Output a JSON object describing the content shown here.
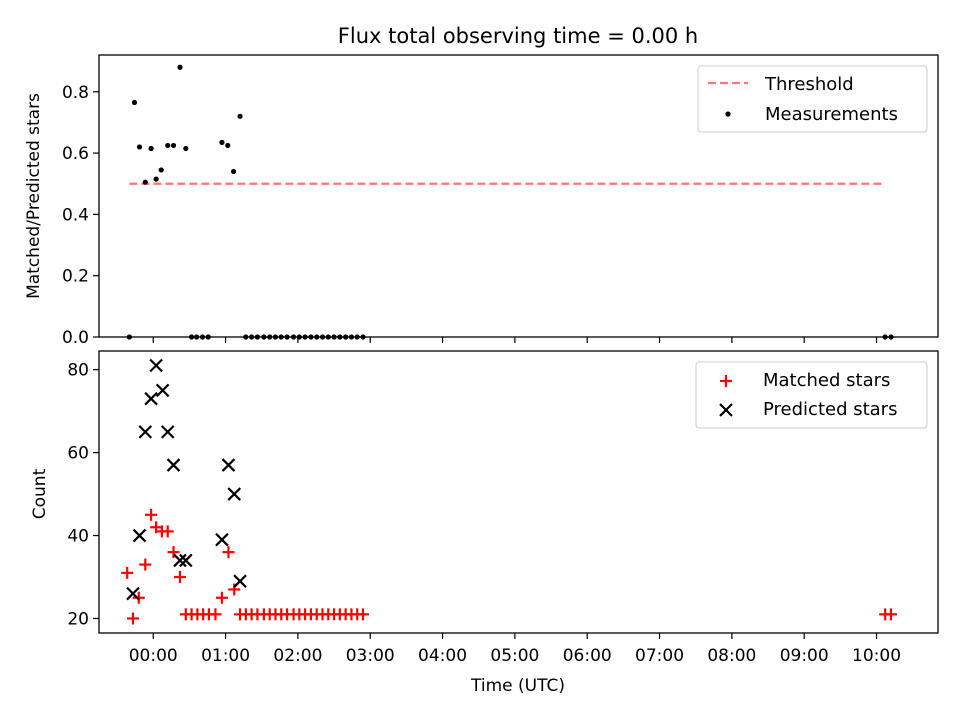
{
  "chart_data": [
    {
      "type": "scatter",
      "title": "Flux total observing time = 0.00 h",
      "ylabel": "Matched/Predicted stars",
      "xlabel": "",
      "xlim": [
        -0.75,
        10.85
      ],
      "ylim": [
        0,
        0.92
      ],
      "yticks": [
        0.0,
        0.2,
        0.4,
        0.6,
        0.8
      ],
      "ytick_labels": [
        "0.0",
        "0.2",
        "0.4",
        "0.6",
        "0.8"
      ],
      "legend_position": "top-right",
      "threshold": {
        "name": "Threshold",
        "color": "#ff7777",
        "style": "dashed",
        "x": [
          -0.33,
          10.12
        ],
        "y": 0.5
      },
      "series": [
        {
          "name": "Measurements",
          "color": "#000000",
          "marker": "dot",
          "x": [
            -0.33,
            -0.26,
            -0.19,
            -0.11,
            -0.03,
            0.04,
            0.11,
            0.2,
            0.28,
            0.37,
            0.45,
            0.53,
            0.6,
            0.68,
            0.76,
            0.95,
            1.03,
            1.11,
            1.2,
            1.28,
            1.36,
            1.44,
            1.53,
            1.61,
            1.69,
            1.77,
            1.85,
            1.94,
            2.02,
            2.1,
            2.18,
            2.26,
            2.34,
            2.42,
            2.5,
            2.58,
            2.66,
            2.74,
            2.82,
            2.9,
            10.12,
            10.2
          ],
          "y": [
            0.0,
            0.765,
            0.62,
            0.505,
            0.615,
            0.515,
            0.545,
            0.625,
            0.625,
            0.88,
            0.615,
            0.0,
            0.0,
            0.0,
            0.0,
            0.635,
            0.625,
            0.54,
            0.72,
            0.0,
            0.0,
            0.0,
            0.0,
            0.0,
            0.0,
            0.0,
            0.0,
            0.0,
            0.0,
            0.0,
            0.0,
            0.0,
            0.0,
            0.0,
            0.0,
            0.0,
            0.0,
            0.0,
            0.0,
            0.0,
            0.0,
            0.0
          ]
        }
      ]
    },
    {
      "type": "scatter",
      "title": "",
      "ylabel": "Count",
      "xlabel": "Time (UTC)",
      "xlim": [
        -0.75,
        10.85
      ],
      "ylim": [
        16.5,
        84.5
      ],
      "yticks": [
        20,
        40,
        60,
        80
      ],
      "ytick_labels": [
        "20",
        "40",
        "60",
        "80"
      ],
      "xticks": [
        0,
        1,
        2,
        3,
        4,
        5,
        6,
        7,
        8,
        9,
        10
      ],
      "xtick_labels": [
        "00:00",
        "01:00",
        "02:00",
        "03:00",
        "04:00",
        "05:00",
        "06:00",
        "07:00",
        "08:00",
        "09:00",
        "10:00"
      ],
      "legend_position": "top-right",
      "series": [
        {
          "name": "Matched stars",
          "color": "#ff0000",
          "marker": "plus",
          "x": [
            -0.36,
            -0.28,
            -0.2,
            -0.11,
            -0.03,
            0.04,
            0.12,
            0.2,
            0.28,
            0.37,
            0.45,
            0.53,
            0.61,
            0.69,
            0.77,
            0.86,
            0.95,
            1.04,
            1.12,
            1.2,
            1.28,
            1.36,
            1.44,
            1.53,
            1.61,
            1.69,
            1.77,
            1.85,
            1.94,
            2.02,
            2.1,
            2.18,
            2.26,
            2.34,
            2.42,
            2.5,
            2.58,
            2.66,
            2.74,
            2.82,
            2.9,
            10.12,
            10.2
          ],
          "y": [
            31,
            20,
            25,
            33,
            45,
            42,
            41,
            41,
            36,
            30,
            21,
            21,
            21,
            21,
            21,
            21,
            25,
            36,
            27,
            21,
            21,
            21,
            21,
            21,
            21,
            21,
            21,
            21,
            21,
            21,
            21,
            21,
            21,
            21,
            21,
            21,
            21,
            21,
            21,
            21,
            21,
            21,
            21
          ]
        },
        {
          "name": "Predicted stars",
          "color": "#000000",
          "marker": "x",
          "x": [
            -0.28,
            -0.19,
            -0.11,
            -0.03,
            0.04,
            0.13,
            0.2,
            0.28,
            0.37,
            0.45,
            0.95,
            1.04,
            1.12,
            1.2
          ],
          "y": [
            26,
            40,
            65,
            73,
            81,
            75,
            65,
            57,
            34,
            34,
            39,
            57,
            50,
            29
          ]
        }
      ]
    }
  ]
}
